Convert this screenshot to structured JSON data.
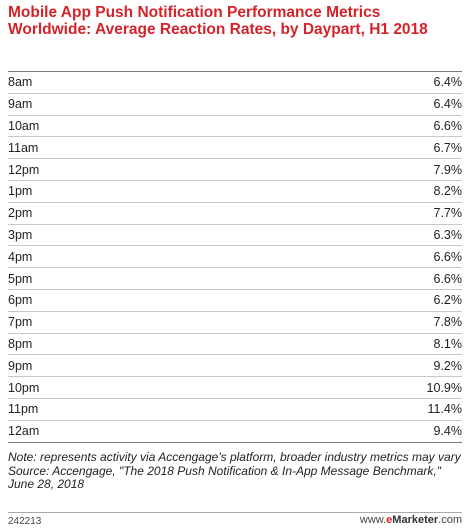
{
  "chart_data": {
    "type": "table",
    "title": "Mobile App Push Notification Performance Metrics Worldwide: Average Reaction Rates, by Daypart, H1 2018",
    "categories": [
      "8am",
      "9am",
      "10am",
      "11am",
      "12pm",
      "1pm",
      "2pm",
      "3pm",
      "4pm",
      "5pm",
      "6pm",
      "7pm",
      "8pm",
      "9pm",
      "10pm",
      "11pm",
      "12am"
    ],
    "values": [
      6.4,
      6.4,
      6.6,
      6.7,
      7.9,
      8.2,
      7.7,
      6.3,
      6.6,
      6.6,
      6.2,
      7.8,
      8.1,
      9.2,
      10.9,
      11.4,
      9.4
    ],
    "value_labels": [
      "6.4%",
      "6.4%",
      "6.6%",
      "6.7%",
      "7.9%",
      "8.2%",
      "7.7%",
      "6.3%",
      "6.6%",
      "6.6%",
      "6.2%",
      "7.8%",
      "8.1%",
      "9.2%",
      "10.9%",
      "11.4%",
      "9.4%"
    ],
    "unit": "%",
    "note": "Note: represents activity via Accengage's platform, broader industry metrics may vary",
    "source": "Source: Accengage, \"The 2018 Push Notification & In-App Message Benchmark,\" June 28, 2018"
  },
  "footer": {
    "chart_id": "242213",
    "brand_prefix": "www.",
    "brand_e": "e",
    "brand_name": "Marketer",
    "brand_suffix": ".com"
  },
  "colors": {
    "title": "#d2242a",
    "text": "#222222",
    "row_divider": "#c8c8c8",
    "strong_rule": "#7a7a7a"
  }
}
